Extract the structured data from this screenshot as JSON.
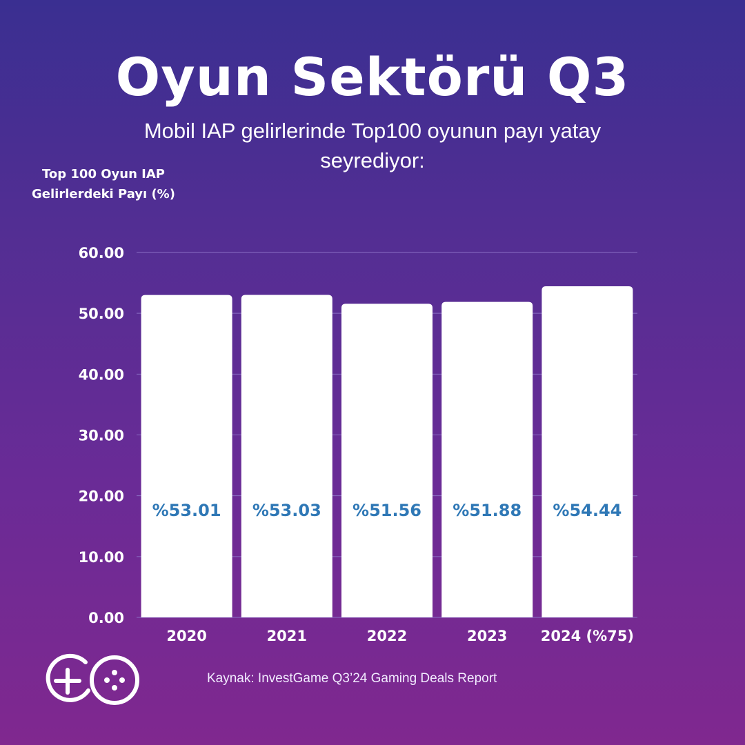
{
  "title": "Oyun Sektörü Q3",
  "subtitle": "Mobil IAP gelirlerinde Top100 oyunun payı yatay seyrediyor:",
  "source": "Kaynak: InvestGame Q3’24 Gaming Deals Report",
  "logo_icon": "game-controller-logo-icon",
  "colors": {
    "bar": "#ffffff",
    "data_label": "#2f78b6",
    "gridline": "#8a6fc4"
  },
  "chart_data": {
    "type": "bar",
    "ylabel": "Top 100 Oyun IAP Gelirlerdeki Payı (%)",
    "xlabel": "",
    "categories": [
      "2020",
      "2021",
      "2022",
      "2023",
      "2024 (%75)"
    ],
    "values": [
      53.01,
      53.03,
      51.56,
      51.88,
      54.44
    ],
    "data_labels": [
      "%53.01",
      "%53.03",
      "%51.56",
      "%51.88",
      "%54.44"
    ],
    "ylim": [
      0,
      60
    ],
    "yticks": [
      0,
      10,
      20,
      30,
      40,
      50,
      60
    ],
    "ytick_labels": [
      "0.00",
      "10.00",
      "20.00",
      "30.00",
      "40.00",
      "50.00",
      "60.00"
    ],
    "grid": true
  }
}
